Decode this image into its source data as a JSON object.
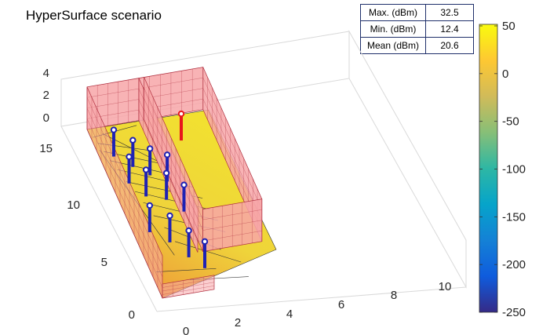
{
  "title": "HyperSurface scenario",
  "stats": [
    {
      "label": "Max. (dBm)",
      "value": "32.5"
    },
    {
      "label": "Min. (dBm)",
      "value": "12.4"
    },
    {
      "label": "Mean (dBm)",
      "value": "20.6"
    }
  ],
  "chart_data": {
    "type": "heatmap",
    "title": "HyperSurface scenario",
    "xlabel": "",
    "ylabel": "",
    "zlabel": "",
    "x_ticks": [
      "0",
      "2",
      "4",
      "6",
      "8",
      "10"
    ],
    "y_ticks": [
      "0",
      "5",
      "10",
      "15"
    ],
    "z_ticks": [
      "0",
      "2",
      "4"
    ],
    "xlim": [
      0,
      11
    ],
    "ylim": [
      0,
      16
    ],
    "zlim": [
      0,
      4
    ],
    "grid": true,
    "colorbar": {
      "ticks": [
        "50",
        "0",
        "-50",
        "-100",
        "-150",
        "-200",
        "-250"
      ],
      "range": [
        -250,
        50
      ],
      "colormap": "parula",
      "colors": [
        "#352a87",
        "#0f5cdd",
        "#1481d6",
        "#06a4ca",
        "#2eb7a4",
        "#87bf77",
        "#d1bb59",
        "#fec832",
        "#f9fb0e"
      ]
    },
    "receivers": {
      "color": "#1f22b4",
      "count": 12
    },
    "transmitter": {
      "color": "#e8161b",
      "count": 1
    },
    "wall_color": "#f7a6a8",
    "coverage_colors": {
      "high": "#f2e22f",
      "low": "#ee9a38"
    }
  }
}
